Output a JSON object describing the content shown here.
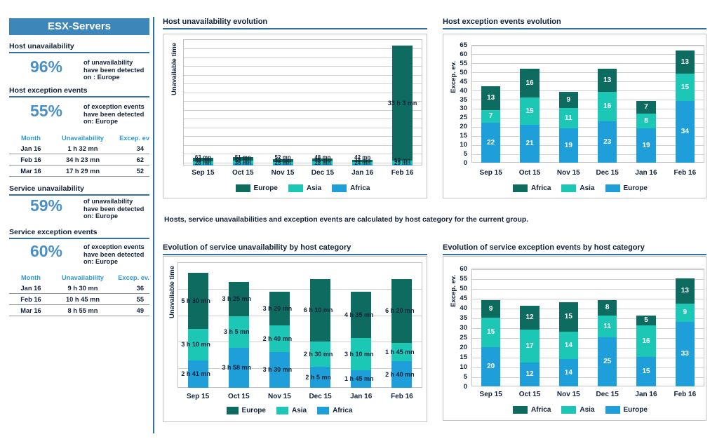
{
  "colors": {
    "dark": "#0e6b5f",
    "teal": "#1cc7b5",
    "blue": "#1e9fd9",
    "accent": "#33719f",
    "header_bg": "#3d86ba",
    "navy": "#13233a",
    "pct": "#4a90c8",
    "thead": "#2f9bd6"
  },
  "sidebar": {
    "title": "ESX-Servers",
    "stats": [
      {
        "heading": "Host unavailability",
        "percent": "96%",
        "lines": [
          "of unavailability",
          "have been detected"
        ],
        "on": "on : ",
        "region": "Europe"
      },
      {
        "heading": "Host exception events",
        "percent": "55%",
        "lines": [
          "of exception events",
          "have been detected"
        ],
        "on": "on: ",
        "region": "Europe"
      },
      {
        "heading": "Service unavailability",
        "percent": "59%",
        "lines": [
          "of unavailability",
          "have been detected"
        ],
        "on": "on: ",
        "region": "Europe"
      },
      {
        "heading": "Service exception events",
        "percent": "60%",
        "lines": [
          "of exception events",
          "have been detected"
        ],
        "on": "on: ",
        "region": "Europe"
      }
    ],
    "tables": [
      {
        "headers": [
          "Month",
          "Unavailability",
          "Excep. ev"
        ],
        "rows": [
          [
            "Jan 16",
            "1 h 32 mn",
            "34"
          ],
          [
            "Feb 16",
            "34 h 23 mn",
            "62"
          ],
          [
            "Mar 16",
            "17 h 29 mn",
            "52"
          ]
        ]
      },
      {
        "headers": [
          "Month",
          "Unavailability",
          "Excep. ev."
        ],
        "rows": [
          [
            "Jan 16",
            "9 h 30 mn",
            "36"
          ],
          [
            "Feb 16",
            "10 h 45 mn",
            "55"
          ],
          [
            "Mar 16",
            "8 h 55 mn",
            "49"
          ]
        ]
      }
    ]
  },
  "note": "Hosts, service unavailabilities and exception events are calculated by host category for the current group.",
  "chart_data": [
    {
      "id": "host-unavailability-evolution",
      "type": "bar",
      "title": "Host unavailability evolution",
      "ylabel": "Unavailable time",
      "xlabel": "",
      "unit": "minutes",
      "ylim": [
        0,
        2180
      ],
      "categories": [
        "Sep 15",
        "Oct 15",
        "Nov 15",
        "Dec 15",
        "Jan 16",
        "Feb 16"
      ],
      "series": [
        {
          "name": "Africa",
          "color": "blue",
          "values": [
            28,
            35,
            25,
            28,
            24,
            29
          ],
          "labels": [
            "28 mn",
            "35 mn",
            "25 mn",
            "28 mn",
            "24 mn",
            "29 mn"
          ]
        },
        {
          "name": "Asia",
          "color": "teal",
          "values": [
            48,
            55,
            32,
            45,
            34,
            59
          ],
          "labels": [
            "48 mn",
            "55 mn",
            "32 mn",
            "45 mn",
            "34 mn",
            "59 mn"
          ]
        },
        {
          "name": "Europe",
          "color": "dark",
          "values": [
            63,
            51,
            52,
            48,
            42,
            1983
          ],
          "labels": [
            "63 mn",
            "51 mn",
            "52 mn",
            "48 mn",
            "42 mn",
            "33 h 3 mn"
          ]
        }
      ],
      "legend": [
        "Europe",
        "Asia",
        "Africa"
      ]
    },
    {
      "id": "host-exception-events-evolution",
      "type": "bar",
      "title": "Host exception events evolution",
      "ylabel": "Excep. ev.",
      "xlabel": "",
      "ylim": [
        0,
        65
      ],
      "ytick_step": 5,
      "categories": [
        "Sep 15",
        "Oct 15",
        "Nov 15",
        "Dec 15",
        "Jan 16",
        "Feb 16"
      ],
      "series": [
        {
          "name": "Europe",
          "color": "blue",
          "values": [
            22,
            21,
            19,
            23,
            19,
            34
          ]
        },
        {
          "name": "Asia",
          "color": "teal",
          "values": [
            7,
            15,
            11,
            16,
            8,
            15
          ]
        },
        {
          "name": "Africa",
          "color": "dark",
          "values": [
            13,
            16,
            9,
            13,
            7,
            13
          ]
        }
      ],
      "legend": [
        "Africa",
        "Asia",
        "Europe"
      ]
    },
    {
      "id": "service-unavailability-by-host-category",
      "type": "bar",
      "title": "Evolution of service unavailability by host category",
      "ylabel": "Unavailable time",
      "xlabel": "",
      "unit": "minutes",
      "ylim": [
        0,
        744
      ],
      "categories": [
        "Sep 15",
        "Oct 15",
        "Nov 15",
        "Dec 15",
        "Jan 16",
        "Feb 16"
      ],
      "series": [
        {
          "name": "Africa",
          "color": "blue",
          "values": [
            161,
            238,
            210,
            125,
            105,
            160
          ],
          "labels": [
            "2 h 41 mn",
            "3 h 58 mn",
            "3 h 30 mn",
            "2 h 5 mn",
            "1 h 45 mn",
            "2 h 40 mn"
          ]
        },
        {
          "name": "Asia",
          "color": "teal",
          "values": [
            190,
            185,
            160,
            150,
            190,
            105
          ],
          "labels": [
            "3 h 10 mn",
            "3 h 5 mn",
            "2 h 40 mn",
            "2 h 30 mn",
            "3 h 10 mn",
            "1 h 45 mn"
          ]
        },
        {
          "name": "Europe",
          "color": "dark",
          "values": [
            330,
            205,
            200,
            370,
            275,
            380
          ],
          "labels": [
            "5 h 30 mn",
            "3 h 25 mn",
            "3 h 20 mn",
            "6 h 10 mn",
            "4 h 35 mn",
            "6 h 20 mn"
          ]
        }
      ],
      "legend": [
        "Europe",
        "Asia",
        "Africa"
      ]
    },
    {
      "id": "service-exception-events-by-host-category",
      "type": "bar",
      "title": "Evolution of service exception events by host category",
      "ylabel": "Excep. ev.",
      "xlabel": "",
      "ylim": [
        0,
        60
      ],
      "ytick_step": 5,
      "categories": [
        "Sep 15",
        "Oct 15",
        "Nov 15",
        "Dec 15",
        "Jan 16",
        "Feb 16"
      ],
      "series": [
        {
          "name": "Europe",
          "color": "blue",
          "values": [
            20,
            12,
            14,
            25,
            15,
            33
          ]
        },
        {
          "name": "Asia",
          "color": "teal",
          "values": [
            15,
            17,
            14,
            11,
            16,
            9
          ]
        },
        {
          "name": "Africa",
          "color": "dark",
          "values": [
            9,
            12,
            15,
            8,
            5,
            13
          ]
        }
      ],
      "legend": [
        "Africa",
        "Asia",
        "Europe"
      ]
    }
  ]
}
